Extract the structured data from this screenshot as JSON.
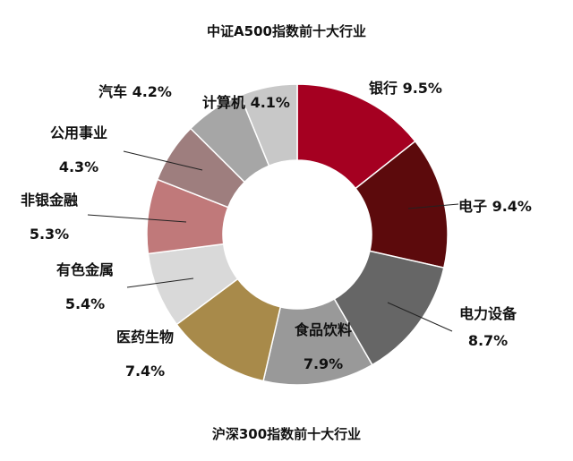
{
  "chart_data": {
    "type": "pie",
    "variant": "donut",
    "title": "中证A500指数前十大行业",
    "caption": "沪深300指数前十大行业",
    "slices": [
      {
        "name": "银行",
        "value_label": "9.5%",
        "value": 9.5,
        "color": "#A50021"
      },
      {
        "name": "电子",
        "value_label": "9.4%",
        "value": 9.4,
        "color": "#5C0A0C"
      },
      {
        "name": "电力设备",
        "value_label": "8.7%",
        "value": 8.7,
        "color": "#666666"
      },
      {
        "name": "食品饮料",
        "value_label": "7.9%",
        "value": 7.9,
        "color": "#999999"
      },
      {
        "name": "医药生物",
        "value_label": "7.4%",
        "value": 7.4,
        "color": "#A88A4A"
      },
      {
        "name": "有色金属",
        "value_label": "5.4%",
        "value": 5.4,
        "color": "#D9D9D9"
      },
      {
        "name": "非银金融",
        "value_label": "5.3%",
        "value": 5.3,
        "color": "#C0797A"
      },
      {
        "name": "公用事业",
        "value_label": "4.3%",
        "value": 4.3,
        "color": "#9E7E7E"
      },
      {
        "name": "汽车",
        "value_label": "4.2%",
        "value": 4.2,
        "color": "#A6A6A6"
      },
      {
        "name": "计算机",
        "value_label": "4.1%",
        "value": 4.1,
        "color": "#C8C8C8"
      }
    ]
  }
}
